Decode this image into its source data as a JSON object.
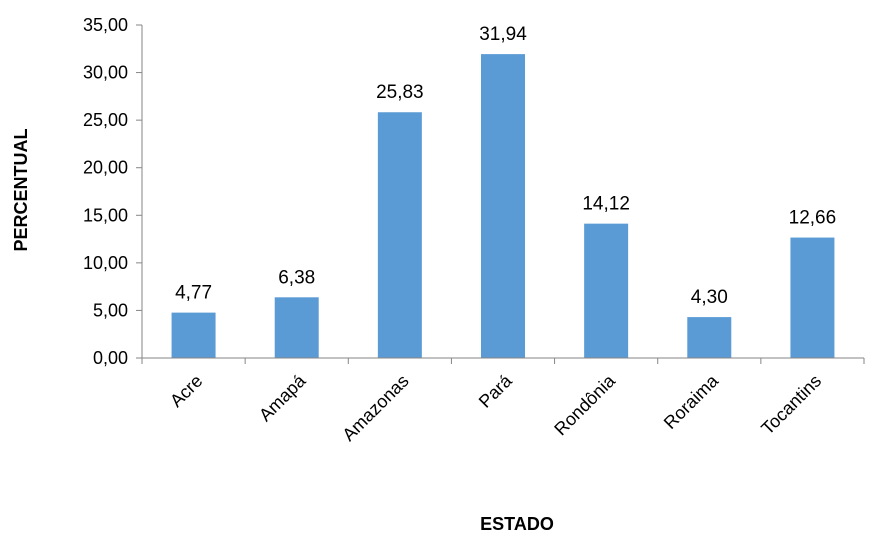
{
  "chart_data": {
    "type": "bar",
    "xlabel": "ESTADO",
    "ylabel": "PERCENTUAL",
    "ylim": [
      0,
      35
    ],
    "yticks": [
      "0,00",
      "5,00",
      "10,00",
      "15,00",
      "20,00",
      "25,00",
      "30,00",
      "35,00"
    ],
    "categories": [
      "Acre",
      "Amapá",
      "Amazonas",
      "Pará",
      "Rondônia",
      "Roraima",
      "Tocantins"
    ],
    "values": [
      4.77,
      6.38,
      25.83,
      31.94,
      14.12,
      4.3,
      12.66
    ],
    "value_labels": [
      "4,77",
      "6,38",
      "25,83",
      "31,94",
      "14,12",
      "4,30",
      "12,66"
    ],
    "bar_color": "#5B9BD5",
    "axis_color": "#868686",
    "grid": false,
    "legend": "none"
  }
}
